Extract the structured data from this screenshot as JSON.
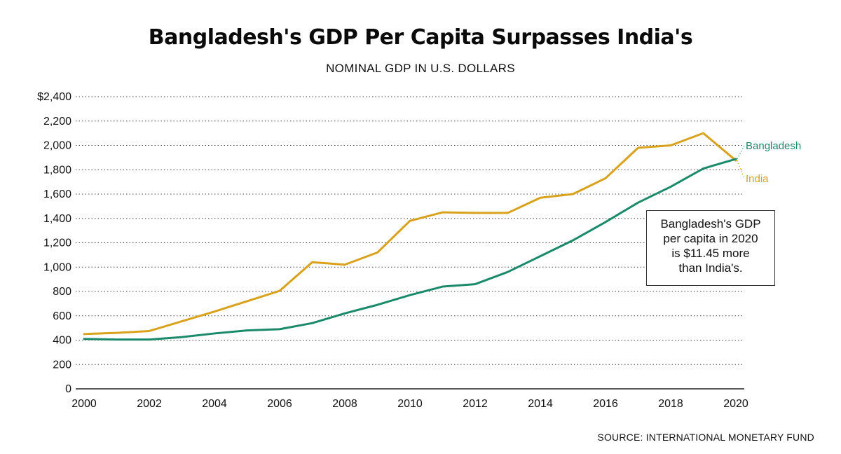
{
  "chart_data": {
    "type": "line",
    "title": "Bangladesh's GDP Per Capita Surpasses India's",
    "subtitle": "NOMINAL GDP IN U.S. DOLLARS",
    "x": [
      2000,
      2001,
      2002,
      2003,
      2004,
      2005,
      2006,
      2007,
      2008,
      2009,
      2010,
      2011,
      2012,
      2013,
      2014,
      2015,
      2016,
      2017,
      2018,
      2019,
      2020
    ],
    "x_ticks": [
      "2000",
      "2002",
      "2004",
      "2006",
      "2008",
      "2010",
      "2012",
      "2014",
      "2016",
      "2018",
      "2020"
    ],
    "y_ticks": [
      "$2,400",
      "2,200",
      "2,000",
      "1,800",
      "1,600",
      "1,400",
      "1,200",
      "1,000",
      "800",
      "600",
      "400",
      "200",
      "0"
    ],
    "ylim": [
      0,
      2400
    ],
    "grid": true,
    "series": [
      {
        "name": "Bangladesh",
        "color": "#1a8a6a",
        "values": [
          410,
          405,
          405,
          425,
          455,
          480,
          490,
          540,
          620,
          690,
          770,
          840,
          860,
          960,
          1090,
          1220,
          1370,
          1530,
          1660,
          1810,
          1888
        ]
      },
      {
        "name": "India",
        "color": "#d9a21c",
        "values": [
          450,
          460,
          475,
          555,
          635,
          720,
          805,
          1040,
          1020,
          1120,
          1380,
          1450,
          1445,
          1445,
          1570,
          1600,
          1730,
          1980,
          2000,
          2100,
          1876
        ]
      }
    ],
    "annotation": [
      "Bangladesh's GDP",
      "per capita in 2020",
      "is $11.45 more",
      "than India's."
    ],
    "source": "SOURCE: INTERNATIONAL MONETARY FUND"
  }
}
